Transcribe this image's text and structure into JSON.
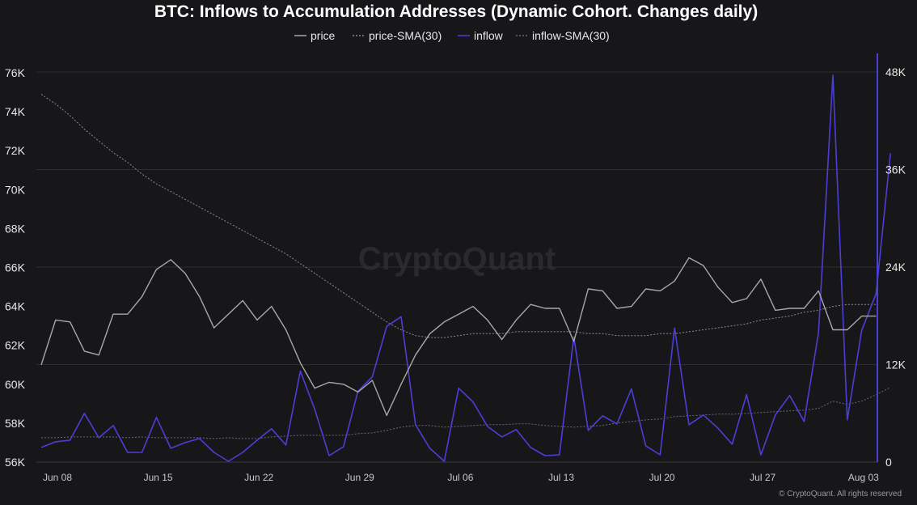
{
  "chart_data": {
    "type": "line",
    "title": "BTC: Inflows to Accumulation Addresses (Dynamic Cohort. Changes daily)",
    "watermark": "CryptoQuant",
    "copyright": "© CryptoQuant. All rights reserved",
    "legend_position": "top-center",
    "grid": true,
    "x_ticks": [
      "Jun 08",
      "Jun 15",
      "Jun 22",
      "Jun 29",
      "Jul 06",
      "Jul 13",
      "Jul 20",
      "Jul 27",
      "Aug 03"
    ],
    "y_left_ticks": [
      "56K",
      "58K",
      "60K",
      "62K",
      "64K",
      "66K",
      "68K",
      "70K",
      "72K",
      "74K",
      "76K"
    ],
    "y_left_values": [
      56000,
      58000,
      60000,
      62000,
      64000,
      66000,
      68000,
      70000,
      72000,
      74000,
      76000
    ],
    "y_right_ticks": [
      "0",
      "12K",
      "24K",
      "36K",
      "48K"
    ],
    "y_right_values": [
      0,
      12000,
      24000,
      36000,
      48000
    ],
    "ylim_left": [
      56000,
      76000
    ],
    "ylim_right": [
      0,
      48000
    ],
    "colors": {
      "price": "#a8a8a8",
      "price_sma": "#8c8c8c",
      "inflow": "#4b3fd6",
      "inflow_sma": "#6b6584",
      "right_axis": "#4b3fd6"
    },
    "series": [
      {
        "name": "price",
        "axis": "left",
        "values": [
          61000,
          63300,
          63200,
          61700,
          61500,
          63600,
          63600,
          64500,
          65900,
          66400,
          65700,
          64500,
          62900,
          63600,
          64300,
          63300,
          64000,
          62800,
          61100,
          59800,
          60100,
          60000,
          59600,
          60200,
          58400,
          60000,
          61500,
          62600,
          63200,
          63600,
          64000,
          63300,
          62300,
          63300,
          64100,
          63900,
          63900,
          62200,
          64900,
          64800,
          63900,
          64000,
          64900,
          64800,
          65300,
          66500,
          66100,
          65000,
          64200,
          64400,
          65400,
          63800,
          63900,
          63900,
          64800,
          62800,
          62800,
          63500,
          63500
        ]
      },
      {
        "name": "price-SMA(30)",
        "axis": "left",
        "values": [
          74900,
          74400,
          73800,
          73100,
          72500,
          71900,
          71400,
          70800,
          70300,
          69900,
          69500,
          69100,
          68700,
          68300,
          67900,
          67500,
          67100,
          66700,
          66200,
          65700,
          65200,
          64700,
          64200,
          63700,
          63200,
          62800,
          62500,
          62400,
          62400,
          62500,
          62600,
          62600,
          62600,
          62700,
          62700,
          62700,
          62700,
          62700,
          62600,
          62600,
          62500,
          62500,
          62500,
          62600,
          62600,
          62700,
          62800,
          62900,
          63000,
          63100,
          63300,
          63400,
          63500,
          63700,
          63800,
          64000,
          64100,
          64100,
          64100
        ]
      },
      {
        "name": "inflow",
        "axis": "right",
        "values": [
          1800,
          2500,
          2700,
          6000,
          3000,
          4500,
          1200,
          1200,
          5500,
          1700,
          2400,
          2900,
          1200,
          100,
          1200,
          2700,
          4100,
          2100,
          11200,
          6500,
          800,
          1900,
          8700,
          10500,
          16700,
          17900,
          4600,
          1700,
          100,
          9100,
          7400,
          4400,
          3100,
          4000,
          1800,
          800,
          900,
          15400,
          3900,
          5700,
          4700,
          9000,
          2000,
          900,
          16500,
          4600,
          5800,
          4200,
          2200,
          8300,
          900,
          5800,
          8200,
          5000,
          15900,
          47600,
          5200,
          16200,
          20700,
          38000
        ]
      },
      {
        "name": "inflow-SMA(30)",
        "axis": "right",
        "values": [
          3000,
          3000,
          3100,
          3100,
          3100,
          3100,
          3000,
          3100,
          3000,
          3000,
          3000,
          3000,
          2900,
          3000,
          2900,
          2900,
          3100,
          3200,
          3300,
          3300,
          3300,
          3300,
          3500,
          3600,
          3900,
          4300,
          4500,
          4500,
          4300,
          4400,
          4500,
          4600,
          4600,
          4700,
          4700,
          4500,
          4400,
          4300,
          4400,
          4500,
          4800,
          5000,
          5200,
          5300,
          5600,
          5700,
          5800,
          5900,
          5900,
          6000,
          6100,
          6200,
          6300,
          6400,
          6600,
          7500,
          7100,
          7500,
          8300,
          9200
        ]
      }
    ]
  }
}
